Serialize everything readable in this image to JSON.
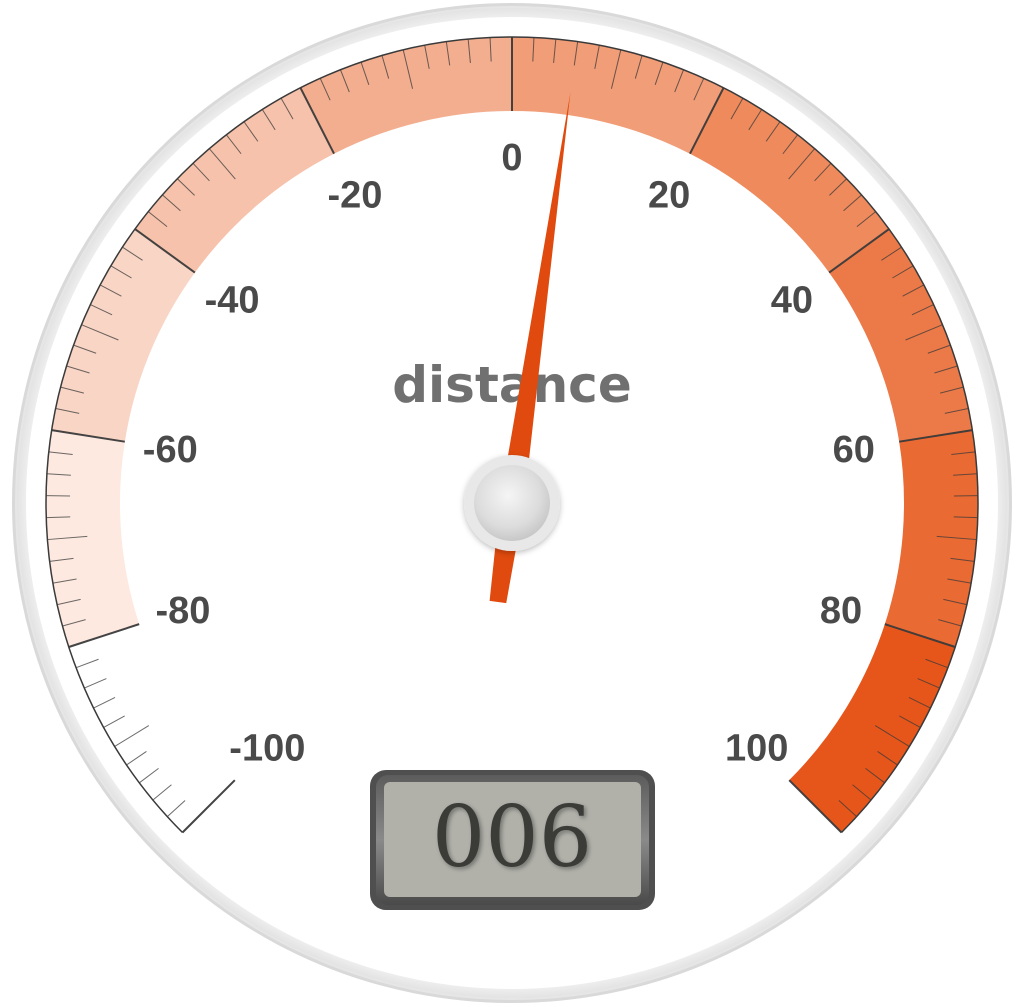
{
  "gauge": {
    "title": "distance",
    "min": -100,
    "max": 100,
    "value": 6,
    "display_value": "006",
    "major_tick_step": 20,
    "minor_ticks_per_major": 10,
    "scale_labels": [
      "-100",
      "-80",
      "-60",
      "-40",
      "-20",
      "0",
      "20",
      "40",
      "60",
      "80",
      "100"
    ],
    "sweep_degrees": 270,
    "start_angle_degrees": 225,
    "colors": {
      "needle": "#e04a0e",
      "tick": "#3a3a3a",
      "label": "#4a4a4a",
      "title": "#707070",
      "lcd_background": "#b1b1aa",
      "lcd_frame": "#4f4f4f",
      "bezel": "#dcdcdc"
    },
    "bands": [
      {
        "from": -100,
        "to": -80,
        "color": "#ffffff"
      },
      {
        "from": -80,
        "to": -60,
        "color": "#fde9e0"
      },
      {
        "from": -60,
        "to": -40,
        "color": "#f9d5c5"
      },
      {
        "from": -40,
        "to": -20,
        "color": "#f7c2ab"
      },
      {
        "from": -20,
        "to": 0,
        "color": "#f3ae8f"
      },
      {
        "from": 0,
        "to": 20,
        "color": "#f19d77"
      },
      {
        "from": 20,
        "to": 40,
        "color": "#ee8a5c"
      },
      {
        "from": 40,
        "to": 60,
        "color": "#ec7a48"
      },
      {
        "from": 60,
        "to": 80,
        "color": "#ea6a33"
      },
      {
        "from": 80,
        "to": 100,
        "color": "#e6561b"
      }
    ]
  }
}
